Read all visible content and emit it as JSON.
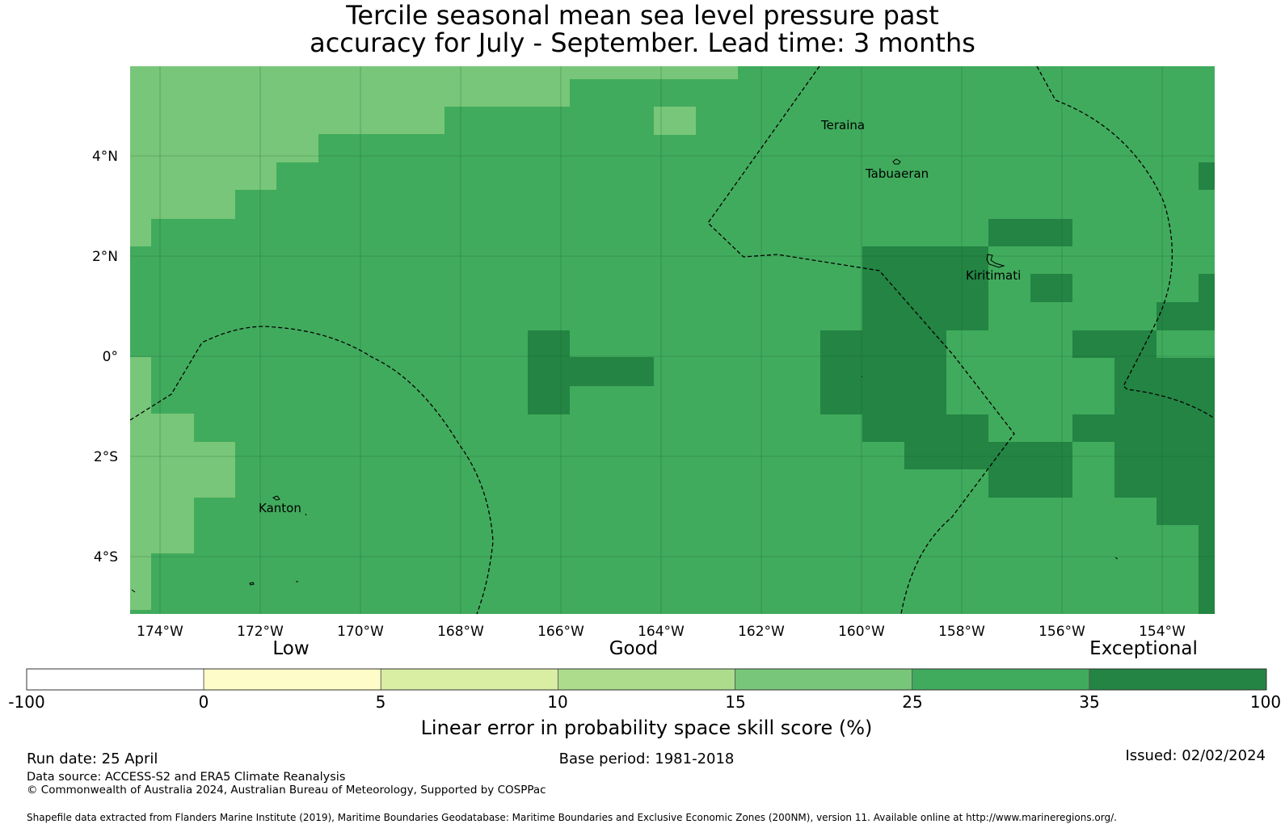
{
  "title": {
    "line1": "Tercile seasonal mean sea level pressure past",
    "line2": "accuracy for July - September. Lead time: 3 months"
  },
  "map": {
    "lat_labels": [
      "4°N",
      "2°N",
      "0°",
      "2°S",
      "4°S"
    ],
    "lon_labels": [
      "174°W",
      "172°W",
      "170°W",
      "168°W",
      "166°W",
      "164°W",
      "162°W",
      "160°W",
      "158°W",
      "156°W",
      "154°W"
    ],
    "places": [
      "Teraina",
      "Tabuaeran",
      "Kiritimati",
      "Kanton"
    ]
  },
  "legend": {
    "categories": [
      "Low",
      "Good",
      "Exceptional"
    ],
    "ticks": [
      "-100",
      "0",
      "5",
      "10",
      "15",
      "25",
      "35",
      "100"
    ],
    "colors": [
      "#ffffff",
      "#fefcc8",
      "#d9eda3",
      "#acdc8c",
      "#78c679",
      "#41ab5d",
      "#238443"
    ],
    "label": "Linear error in probability space skill score (%)"
  },
  "footer": {
    "run_date": "Run date: 25 April",
    "base_period": "Base period: 1981-2018",
    "issued": "Issued: 02/02/2024",
    "data_source": "Data source: ACCESS-S2 and ERA5 Climate Reanalysis",
    "copyright": "© Commonwealth of Australia 2024, Australian Bureau of Meteorology, Supported by COSPPac",
    "shapefile": "Shapefile data extracted from Flanders Marine Institute (2019), Maritime Boundaries Geodatabase: Maritime Boundaries and Exclusive Economic Zones (200NM), version 11. Available online at http://www.marineregions.org/."
  }
}
